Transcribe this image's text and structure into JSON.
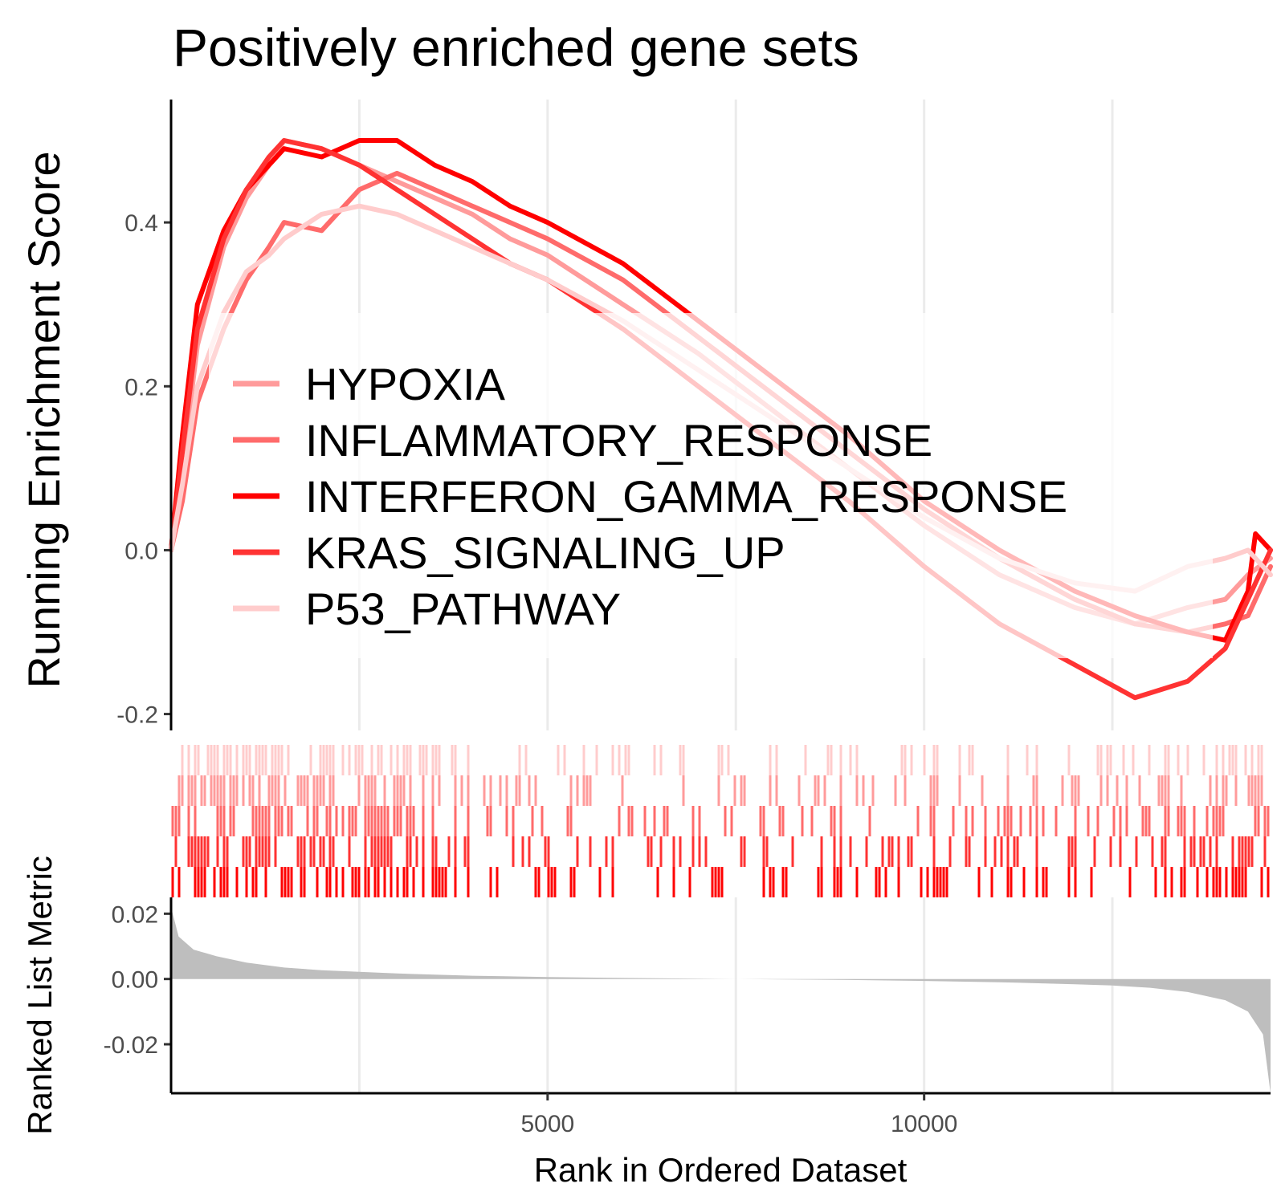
{
  "chart_data": {
    "type": "line",
    "title": "Positively enriched gene sets",
    "xlabel": "Rank in Ordered Dataset",
    "ylabel": "Running Enrichment Score",
    "ylabel_metric": "Ranked List Metric",
    "xlim": [
      0,
      14600
    ],
    "ylim": [
      -0.22,
      0.55
    ],
    "metric_ylim": [
      -0.035,
      0.025
    ],
    "grid": true,
    "legend_position": "center-left",
    "x_ticks": [
      {
        "value": 5000,
        "label": "5000"
      },
      {
        "value": 10000,
        "label": "10000"
      }
    ],
    "y_ticks": [
      {
        "value": 0.4,
        "label": "0.4"
      },
      {
        "value": 0.2,
        "label": "0.2"
      },
      {
        "value": 0.0,
        "label": "0.0"
      },
      {
        "value": -0.2,
        "label": "-0.2"
      }
    ],
    "metric_ticks": [
      {
        "value": 0.02,
        "label": "0.02"
      },
      {
        "value": 0.0,
        "label": "0.00"
      },
      {
        "value": -0.02,
        "label": "-0.02"
      }
    ],
    "series": [
      {
        "name": "HYPOXIA",
        "color": "#FF9B9B",
        "x": [
          0,
          150,
          350,
          700,
          1000,
          1300,
          1500,
          2000,
          2500,
          3000,
          3500,
          4000,
          4500,
          5000,
          6000,
          7000,
          8000,
          9000,
          10000,
          11000,
          12000,
          12800,
          13500,
          14000,
          14300,
          14600
        ],
        "y": [
          0.0,
          0.1,
          0.25,
          0.37,
          0.43,
          0.47,
          0.5,
          0.49,
          0.47,
          0.45,
          0.43,
          0.41,
          0.38,
          0.36,
          0.3,
          0.24,
          0.17,
          0.1,
          0.03,
          -0.03,
          -0.07,
          -0.09,
          -0.07,
          -0.06,
          -0.03,
          -0.01
        ]
      },
      {
        "name": "INFLAMMATORY_RESPONSE",
        "color": "#FF6B6B",
        "x": [
          0,
          150,
          350,
          700,
          1000,
          1300,
          1500,
          2000,
          2500,
          3000,
          3500,
          4000,
          4500,
          5000,
          6000,
          7000,
          8000,
          9000,
          10000,
          11000,
          12000,
          12800,
          13500,
          14000,
          14300,
          14600
        ],
        "y": [
          0.0,
          0.06,
          0.18,
          0.27,
          0.33,
          0.37,
          0.4,
          0.39,
          0.44,
          0.46,
          0.44,
          0.42,
          0.4,
          0.38,
          0.33,
          0.26,
          0.19,
          0.12,
          0.05,
          -0.01,
          -0.06,
          -0.09,
          -0.1,
          -0.09,
          -0.08,
          -0.02
        ]
      },
      {
        "name": "INTERFERON_GAMMA_RESPONSE",
        "color": "#FF0000",
        "x": [
          0,
          150,
          350,
          700,
          1000,
          1300,
          1500,
          2000,
          2500,
          3000,
          3500,
          4000,
          4500,
          5000,
          6000,
          7000,
          8000,
          9000,
          10000,
          11000,
          12000,
          12800,
          13500,
          14000,
          14300,
          14400,
          14600
        ],
        "y": [
          0.0,
          0.14,
          0.3,
          0.39,
          0.44,
          0.47,
          0.49,
          0.48,
          0.5,
          0.5,
          0.47,
          0.45,
          0.42,
          0.4,
          0.35,
          0.28,
          0.21,
          0.14,
          0.06,
          0.0,
          -0.05,
          -0.08,
          -0.1,
          -0.11,
          -0.05,
          0.02,
          0.0
        ]
      },
      {
        "name": "KRAS_SIGNALING_UP",
        "color": "#FF3333",
        "x": [
          0,
          150,
          350,
          700,
          1000,
          1300,
          1500,
          2000,
          2500,
          3000,
          3500,
          4000,
          4500,
          5000,
          6000,
          7000,
          8000,
          9000,
          10000,
          11000,
          12000,
          12800,
          13500,
          14000,
          14300,
          14600
        ],
        "y": [
          0.0,
          0.12,
          0.27,
          0.38,
          0.44,
          0.48,
          0.5,
          0.49,
          0.47,
          0.44,
          0.41,
          0.38,
          0.35,
          0.33,
          0.27,
          0.2,
          0.13,
          0.06,
          -0.02,
          -0.09,
          -0.14,
          -0.18,
          -0.16,
          -0.12,
          -0.06,
          0.0
        ]
      },
      {
        "name": "P53_PATHWAY",
        "color": "#FFCCCC",
        "x": [
          0,
          150,
          350,
          700,
          1000,
          1300,
          1500,
          2000,
          2500,
          3000,
          3500,
          4000,
          4500,
          5000,
          6000,
          7000,
          8000,
          9000,
          10000,
          11000,
          12000,
          12800,
          13500,
          14000,
          14300,
          14600
        ],
        "y": [
          0.0,
          0.08,
          0.2,
          0.29,
          0.34,
          0.36,
          0.38,
          0.41,
          0.42,
          0.41,
          0.39,
          0.37,
          0.35,
          0.33,
          0.28,
          0.22,
          0.16,
          0.1,
          0.04,
          -0.01,
          -0.04,
          -0.05,
          -0.02,
          -0.01,
          0.0,
          -0.03
        ]
      }
    ],
    "metric": {
      "color": "#BEBEBE",
      "x": [
        0,
        100,
        300,
        600,
        1000,
        1500,
        2000,
        3000,
        4000,
        5000,
        6000,
        7000,
        8000,
        9000,
        10000,
        11000,
        12000,
        12500,
        13000,
        13500,
        14000,
        14300,
        14500,
        14600
      ],
      "y": [
        0.022,
        0.013,
        0.009,
        0.007,
        0.005,
        0.0035,
        0.0027,
        0.0017,
        0.001,
        0.0006,
        0.0003,
        0.0001,
        -0.0001,
        -0.0003,
        -0.0006,
        -0.001,
        -0.0016,
        -0.002,
        -0.0027,
        -0.004,
        -0.0065,
        -0.01,
        -0.017,
        -0.035
      ]
    }
  }
}
